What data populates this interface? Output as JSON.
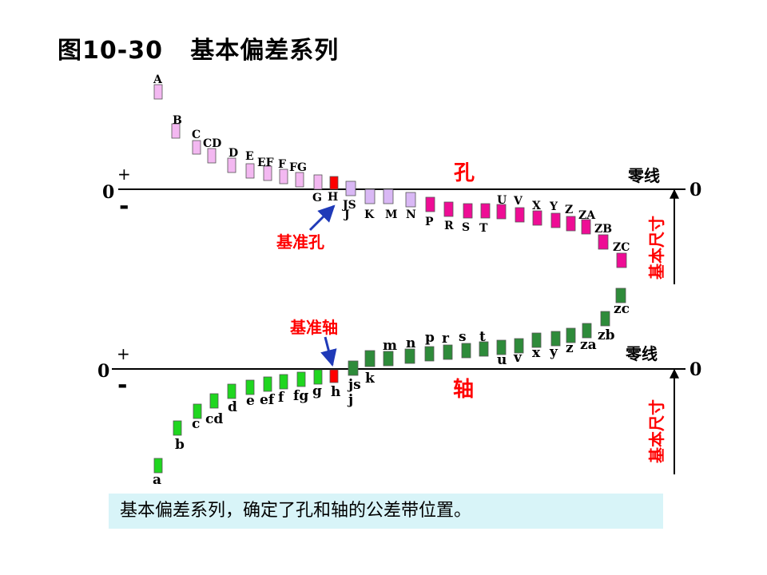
{
  "title": "图10-30   基本偏差系列",
  "hole_diagram": {
    "plus": "+",
    "minus": "-",
    "zero_left": "0",
    "zero_right": "0",
    "zero_line_label": "零线",
    "section_label": "孔",
    "basic_size_label": "基本尺寸",
    "reference_label": "基准孔",
    "reference_letter": "H",
    "bars": [
      {
        "label": "A",
        "group": "above"
      },
      {
        "label": "B",
        "group": "above"
      },
      {
        "label": "C",
        "group": "above"
      },
      {
        "label": "CD",
        "group": "above"
      },
      {
        "label": "D",
        "group": "above"
      },
      {
        "label": "E",
        "group": "above"
      },
      {
        "label": "EF",
        "group": "above"
      },
      {
        "label": "F",
        "group": "above"
      },
      {
        "label": "FG",
        "group": "above"
      },
      {
        "label": "G",
        "group": "above"
      },
      {
        "label": "H",
        "group": "reference"
      },
      {
        "label": "JS",
        "group": "straddle"
      },
      {
        "label": "J",
        "group": "straddle"
      },
      {
        "label": "K",
        "group": "straddle"
      },
      {
        "label": "M",
        "group": "straddle"
      },
      {
        "label": "N",
        "group": "straddle"
      },
      {
        "label": "P",
        "group": "below"
      },
      {
        "label": "R",
        "group": "below"
      },
      {
        "label": "S",
        "group": "below"
      },
      {
        "label": "T",
        "group": "below"
      },
      {
        "label": "U",
        "group": "below"
      },
      {
        "label": "V",
        "group": "below"
      },
      {
        "label": "X",
        "group": "below"
      },
      {
        "label": "Y",
        "group": "below"
      },
      {
        "label": "Z",
        "group": "below"
      },
      {
        "label": "ZA",
        "group": "below"
      },
      {
        "label": "ZB",
        "group": "below"
      },
      {
        "label": "ZC",
        "group": "below"
      }
    ]
  },
  "shaft_diagram": {
    "plus": "+",
    "minus": "-",
    "zero_left": "0",
    "zero_right": "0",
    "zero_line_label": "零线",
    "section_label": "轴",
    "basic_size_label": "基本尺寸",
    "reference_label": "基准轴",
    "reference_letter": "h",
    "bars": [
      {
        "label": "a",
        "group": "below"
      },
      {
        "label": "b",
        "group": "below"
      },
      {
        "label": "c",
        "group": "below"
      },
      {
        "label": "cd",
        "group": "below"
      },
      {
        "label": "d",
        "group": "below"
      },
      {
        "label": "e",
        "group": "below"
      },
      {
        "label": "ef",
        "group": "below"
      },
      {
        "label": "f",
        "group": "below"
      },
      {
        "label": "fg",
        "group": "below"
      },
      {
        "label": "g",
        "group": "below"
      },
      {
        "label": "h",
        "group": "reference"
      },
      {
        "label": "js",
        "group": "straddle"
      },
      {
        "label": "j",
        "group": "straddle"
      },
      {
        "label": "k",
        "group": "above"
      },
      {
        "label": "m",
        "group": "above"
      },
      {
        "label": "n",
        "group": "above"
      },
      {
        "label": "p",
        "group": "above"
      },
      {
        "label": "r",
        "group": "above"
      },
      {
        "label": "s",
        "group": "above"
      },
      {
        "label": "t",
        "group": "above"
      },
      {
        "label": "u",
        "group": "above"
      },
      {
        "label": "v",
        "group": "above"
      },
      {
        "label": "x",
        "group": "above"
      },
      {
        "label": "y",
        "group": "above"
      },
      {
        "label": "z",
        "group": "above"
      },
      {
        "label": "za",
        "group": "above"
      },
      {
        "label": "zb",
        "group": "above"
      },
      {
        "label": "zc",
        "group": "above"
      }
    ]
  },
  "caption": "基本偏差系列，确定了孔和轴的公差带位置。",
  "colors": {
    "hole_above": "#f3b8f1",
    "hole_straddle": "#d9b8f5",
    "hole_below": "#ee0d95",
    "reference": "#ff0000",
    "shaft_below": "#1fd61f",
    "shaft_above": "#2e8b3a",
    "annotation_red": "#ff0000",
    "arrow_blue": "#1f3ab8",
    "caption_bg": "#d8f4f8"
  }
}
